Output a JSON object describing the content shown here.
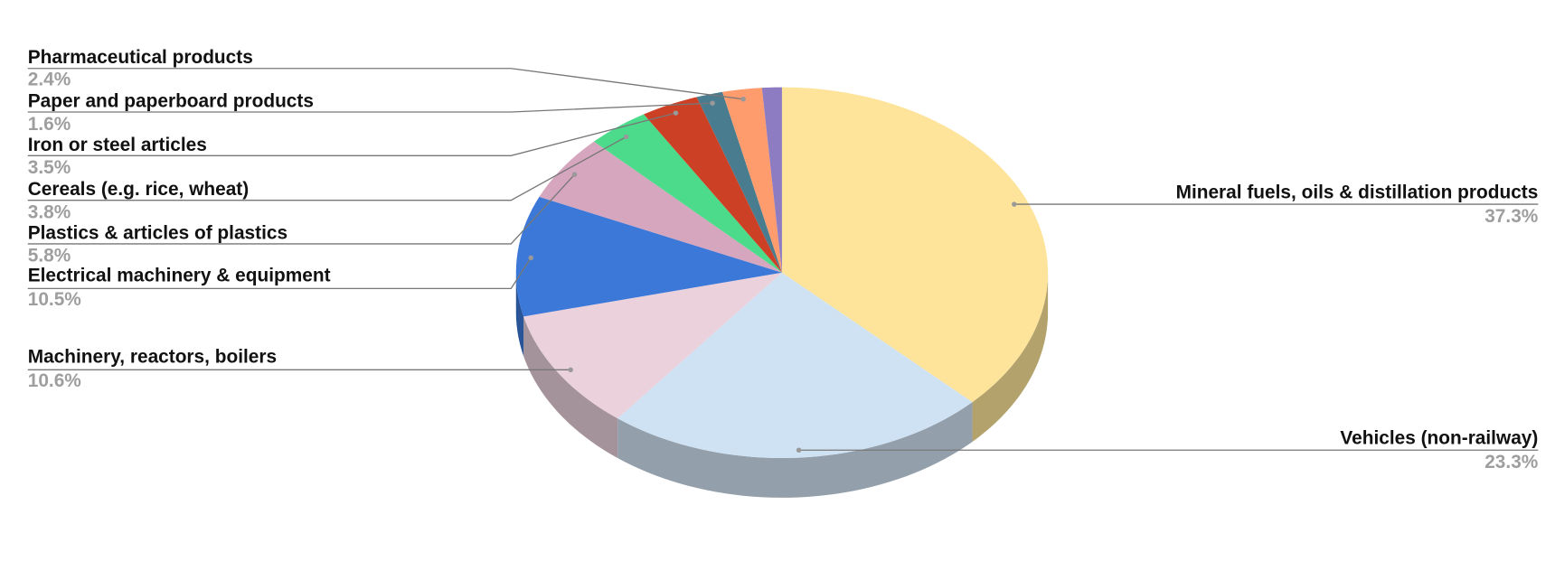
{
  "chart_data": {
    "type": "pie",
    "style": "3d",
    "start_angle": "top, clockwise",
    "slices": [
      {
        "label": "Mineral fuels, oils & distillation products",
        "value": 37.3,
        "value_label": "37.3%",
        "color": "#FDE49A",
        "side_color": "#B3A26B"
      },
      {
        "label": "Vehicles (non-railway)",
        "value": 23.3,
        "value_label": "23.3%",
        "color": "#CFE2F3",
        "side_color": "#939FAB"
      },
      {
        "label": "Machinery, reactors, boilers",
        "value": 10.6,
        "value_label": "10.6%",
        "color": "#EAD1DC",
        "side_color": "#A5939B"
      },
      {
        "label": "Electrical machinery & equipment",
        "value": 10.5,
        "value_label": "10.5%",
        "color": "#3C78D8",
        "side_color": "#2A5498"
      },
      {
        "label": "Plastics & articles of plastics",
        "value": 5.8,
        "value_label": "5.8%",
        "color": "#D5A6BD",
        "side_color": "#967585"
      },
      {
        "label": "Cereals (e.g. rice, wheat)",
        "value": 3.8,
        "value_label": "3.8%",
        "color": "#4CDB8A",
        "side_color": "#369A61"
      },
      {
        "label": "Iron or steel articles",
        "value": 3.5,
        "value_label": "3.5%",
        "color": "#CC4125",
        "side_color": "#902E1A"
      },
      {
        "label": "Paper and paperboard products",
        "value": 1.6,
        "value_label": "1.6%",
        "color": "#4A7C8F",
        "side_color": "#345865"
      },
      {
        "label": "Pharmaceutical products",
        "value": 2.4,
        "value_label": "2.4%",
        "color": "#FF9C6E",
        "side_color": "#B46E4E"
      },
      {
        "label": "",
        "value": 1.2,
        "value_label": "",
        "color": "#8E7CC3",
        "side_color": "#64578A"
      }
    ]
  }
}
